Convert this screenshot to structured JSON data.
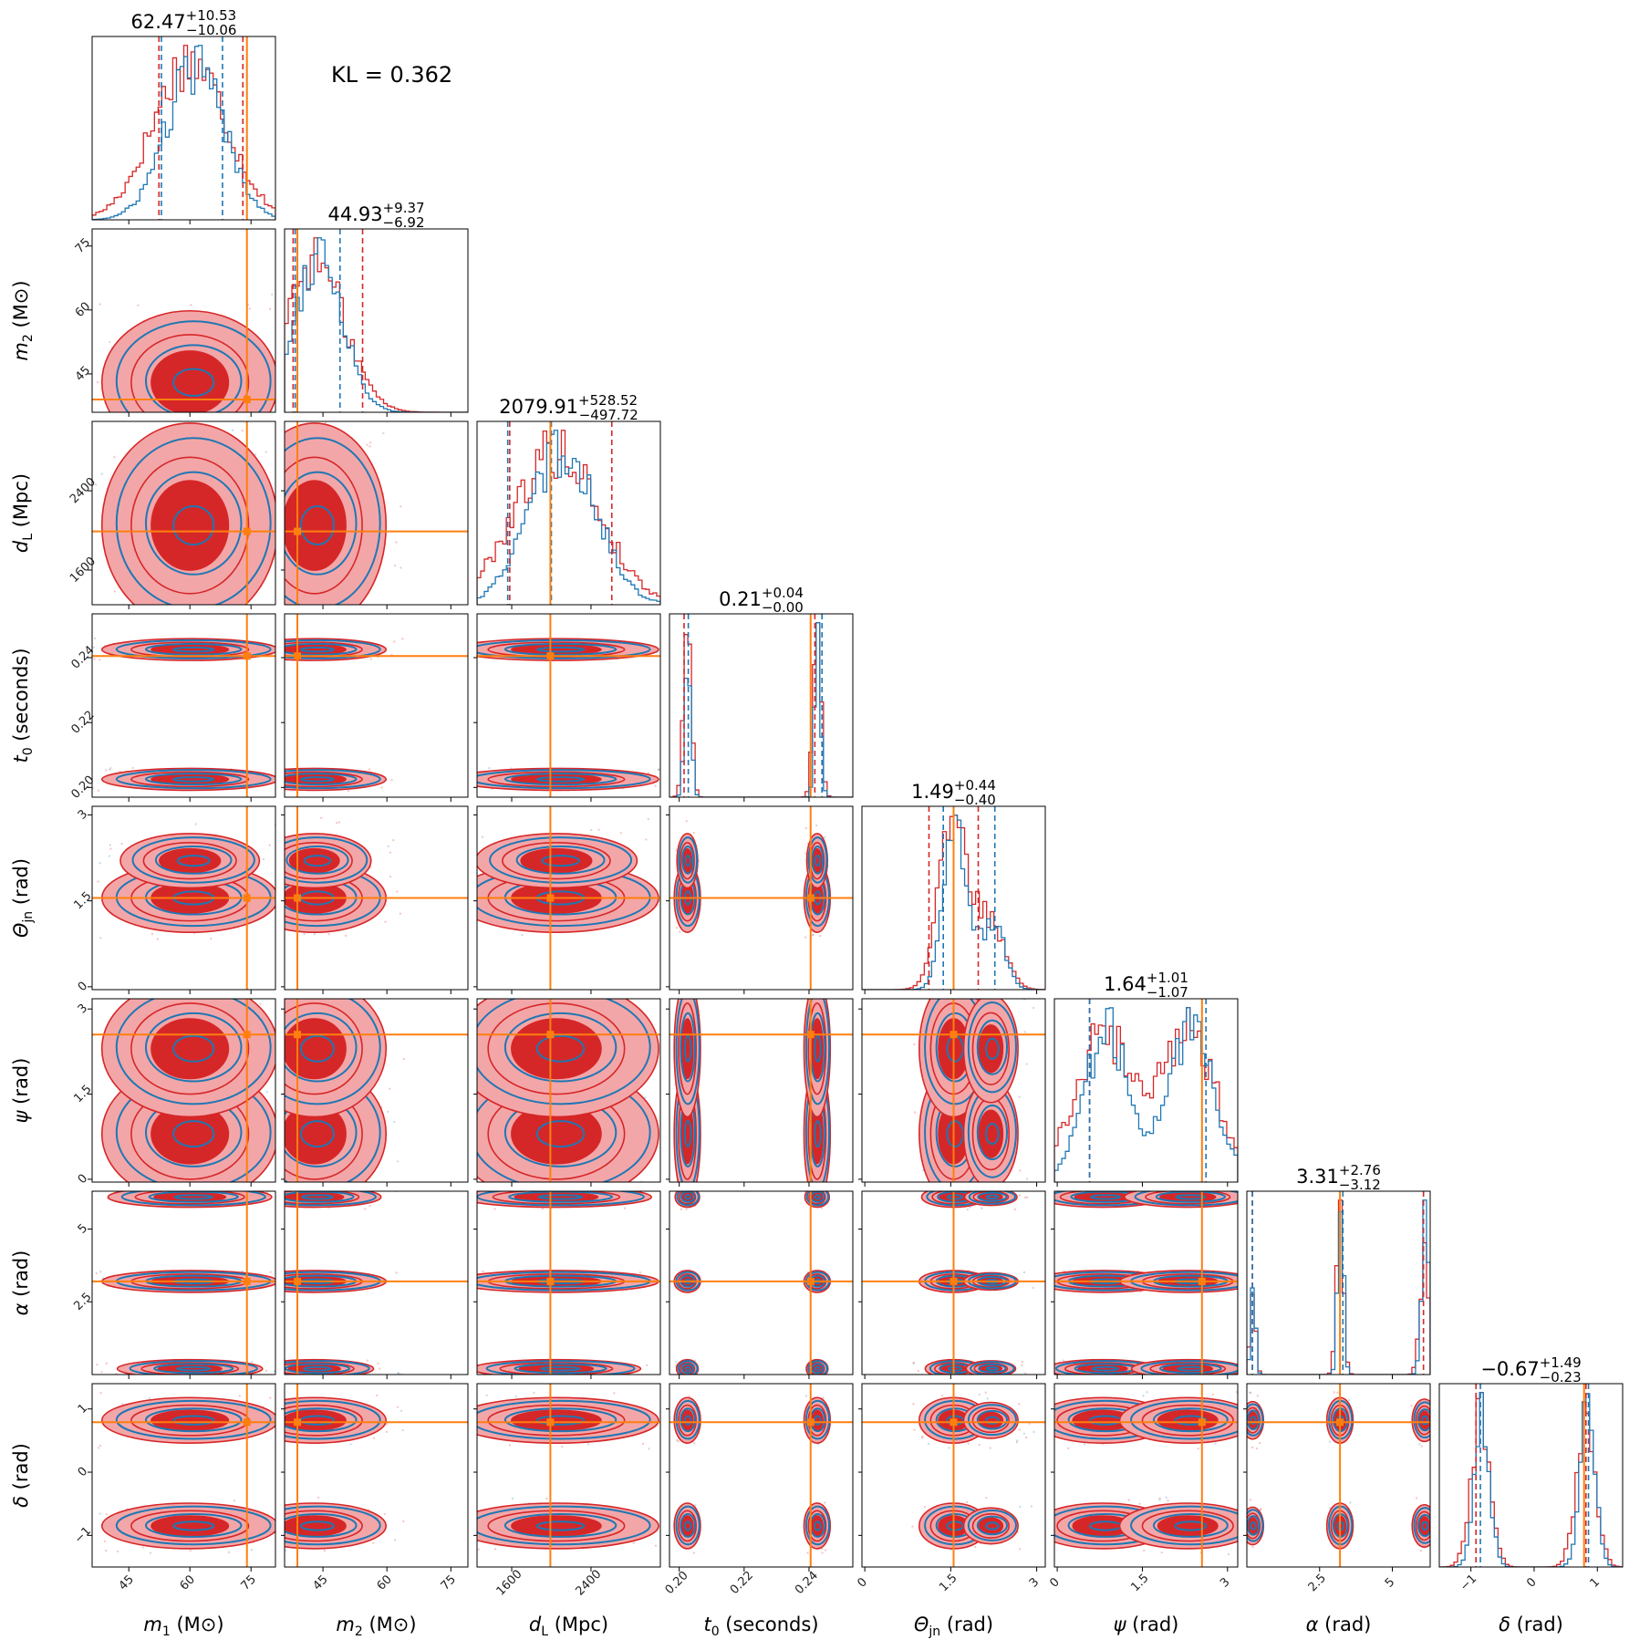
{
  "kl_text": "KL = 0.362",
  "colors": {
    "red": "#d62728",
    "red_fill": "#f3a6a8",
    "blue": "#1f77b4",
    "truth": "#ff7f0e"
  },
  "chart_data": {
    "type": "corner",
    "parameters": [
      {
        "key": "m1",
        "label_main": "m",
        "label_sub": "1",
        "unit": "(M⊙)",
        "range": [
          36,
          81
        ],
        "ticks": [
          45,
          60,
          75
        ],
        "truth": 74,
        "title": {
          "value": "62.47",
          "plus": "+10.53",
          "minus": "−10.06"
        },
        "red_q": [
          52.4,
          73
        ],
        "blue_q": [
          53,
          68
        ],
        "modes": [
          {
            "m": 60,
            "s": 9,
            "w": 1
          }
        ]
      },
      {
        "key": "m2",
        "label_main": "m",
        "label_sub": "2",
        "unit": "(M⊙)",
        "range": [
          36,
          79
        ],
        "ticks": [
          45,
          60,
          75
        ],
        "truth": 39,
        "title": {
          "value": "44.93",
          "plus": "+9.37",
          "minus": "−6.92"
        },
        "red_q": [
          38,
          54.3
        ],
        "blue_q": [
          38.5,
          49
        ],
        "modes": [
          {
            "m": 43,
            "s": 7,
            "w": 1
          }
        ]
      },
      {
        "key": "dL",
        "label_main": "d",
        "label_sub": "L",
        "unit": "(Mpc)",
        "range": [
          1250,
          3100
        ],
        "ticks": [
          1600,
          2400
        ],
        "truth": 1990,
        "title": {
          "value": "2079.91",
          "plus": "+528.52",
          "minus": "−497.72"
        },
        "red_q": [
          1580,
          2610
        ],
        "blue_q": [
          1560,
          2000
        ],
        "modes": [
          {
            "m": 2050,
            "s": 430,
            "w": 1
          }
        ]
      },
      {
        "key": "t0",
        "label_main": "t",
        "label_sub": "0",
        "unit": "(seconds)",
        "range": [
          0.197,
          0.2535
        ],
        "ticks": [
          0.2,
          0.22,
          0.24
        ],
        "truth": 0.2405,
        "title": {
          "value": "0.21",
          "plus": "+0.04",
          "minus": "−0.00"
        },
        "red_q": [
          0.2015,
          0.2418
        ],
        "blue_q": [
          0.2028,
          0.244
        ],
        "modes": [
          {
            "m": 0.2025,
            "s": 0.0012,
            "w": 1
          },
          {
            "m": 0.2425,
            "s": 0.0012,
            "w": 1
          }
        ]
      },
      {
        "key": "theta_jn",
        "label_main": "Θ",
        "label_sub": "jn",
        "unit": "(rad)",
        "range": [
          -0.05,
          3.15
        ],
        "ticks": [
          0.0,
          1.5,
          3.0
        ],
        "truth": 1.55,
        "title": {
          "value": "1.49",
          "plus": "+0.44",
          "minus": "−0.40"
        },
        "red_q": [
          1.12,
          1.98
        ],
        "blue_q": [
          1.37,
          2.27
        ],
        "modes": [
          {
            "m": 1.55,
            "s": 0.25,
            "w": 1
          },
          {
            "m": 2.2,
            "s": 0.25,
            "w": 0.4
          }
        ]
      },
      {
        "key": "psi",
        "label_main": "ψ",
        "label_sub": "",
        "unit": "(rad)",
        "range": [
          -0.05,
          3.18
        ],
        "ticks": [
          0.0,
          1.5,
          3.0
        ],
        "truth": 2.55,
        "title": {
          "value": "1.64",
          "plus": "+1.01",
          "minus": "−1.07"
        },
        "red_q": [
          0.57,
          2.55
        ],
        "blue_q": [
          0.57,
          2.62
        ],
        "modes": [
          {
            "m": 0.8,
            "s": 0.5,
            "w": 1
          },
          {
            "m": 2.3,
            "s": 0.5,
            "w": 1
          }
        ]
      },
      {
        "key": "alpha",
        "label_main": "α",
        "label_sub": "",
        "unit": "(rad)",
        "range": [
          0,
          6.3
        ],
        "ticks": [
          2.5,
          5.0
        ],
        "truth": 3.2,
        "title": {
          "value": "3.31",
          "plus": "+2.76",
          "minus": "−3.12"
        },
        "red_q": [
          0.19,
          6.07
        ],
        "blue_q": [
          0.19,
          3.3
        ],
        "modes": [
          {
            "m": 3.2,
            "s": 0.12,
            "w": 1
          },
          {
            "m": 6.1,
            "s": 0.15,
            "w": 0.8
          },
          {
            "m": 0.2,
            "s": 0.1,
            "w": 0.5
          }
        ]
      },
      {
        "key": "delta",
        "label_main": "δ",
        "label_sub": "",
        "unit": "(rad)",
        "range": [
          -1.5,
          1.4
        ],
        "ticks": [
          -1,
          0,
          1
        ],
        "truth": 0.79,
        "title": {
          "value": "−0.67",
          "plus": "+1.49",
          "minus": "−0.23"
        },
        "red_q": [
          -0.92,
          0.82
        ],
        "blue_q": [
          -0.85,
          0.86
        ],
        "modes": [
          {
            "m": -0.85,
            "s": 0.15,
            "w": 1
          },
          {
            "m": 0.82,
            "s": 0.15,
            "w": 1
          }
        ]
      }
    ]
  }
}
